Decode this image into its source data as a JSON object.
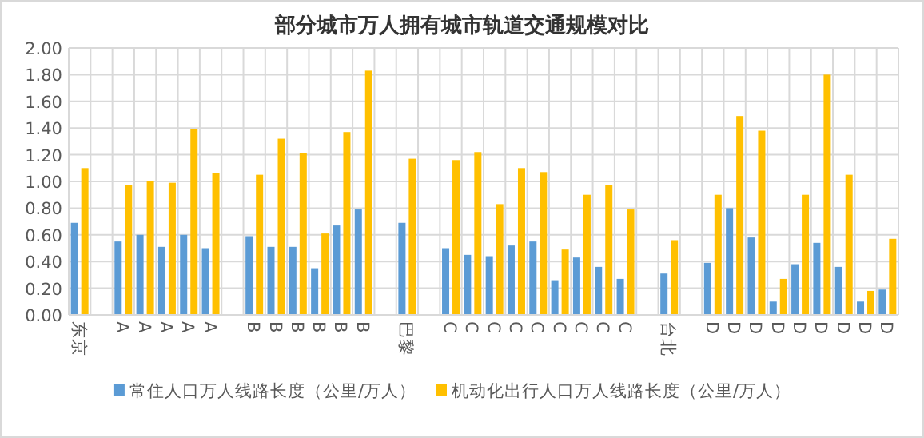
{
  "chart_data": {
    "type": "bar",
    "title": "部分城市万人拥有城市轨道交通规模对比",
    "categories": [
      "东京",
      null,
      "A",
      "A",
      "A",
      "A",
      "A",
      null,
      "B",
      "B",
      "B",
      "B",
      "B",
      "B",
      null,
      "巴黎",
      null,
      "C",
      "C",
      "C",
      "C",
      "C",
      "C",
      "C",
      "C",
      "C",
      null,
      "台北",
      null,
      "D",
      "D",
      "D",
      "D",
      "D",
      "D",
      "D",
      "D",
      "D"
    ],
    "series": [
      {
        "name": "常住人口万人线路长度（公里/万人）",
        "color": "#5b9bd5",
        "values": [
          0.69,
          null,
          0.55,
          0.6,
          0.51,
          0.6,
          0.5,
          null,
          0.59,
          0.51,
          0.51,
          0.35,
          0.67,
          0.79,
          null,
          0.69,
          null,
          0.5,
          0.45,
          0.44,
          0.52,
          0.55,
          0.26,
          0.43,
          0.36,
          0.27,
          null,
          0.31,
          null,
          0.39,
          0.8,
          0.58,
          0.1,
          0.38,
          0.54,
          0.36,
          0.1,
          0.19
        ]
      },
      {
        "name": "机动化出行人口万人线路长度（公里/万人）",
        "color": "#ffc000",
        "values": [
          1.1,
          null,
          0.97,
          1.0,
          0.99,
          1.39,
          1.06,
          null,
          1.05,
          1.32,
          1.21,
          0.61,
          1.37,
          1.83,
          null,
          1.17,
          null,
          1.16,
          1.22,
          0.83,
          1.1,
          1.07,
          0.49,
          0.9,
          0.97,
          0.79,
          null,
          0.56,
          null,
          0.9,
          1.49,
          1.38,
          0.27,
          0.9,
          1.8,
          1.05,
          0.18,
          0.57
        ]
      }
    ],
    "ylim": [
      0,
      2
    ],
    "yticks": [
      {
        "value": 0,
        "label": "0.00"
      },
      {
        "value": 0.2,
        "label": "0.20"
      },
      {
        "value": 0.4,
        "label": "0.40"
      },
      {
        "value": 0.6,
        "label": "0.60"
      },
      {
        "value": 0.8,
        "label": "0.80"
      },
      {
        "value": 1.0,
        "label": "1.00"
      },
      {
        "value": 1.2,
        "label": "1.20"
      },
      {
        "value": 1.4,
        "label": "1.40"
      },
      {
        "value": 1.6,
        "label": "1.60"
      },
      {
        "value": 1.8,
        "label": "1.80"
      },
      {
        "value": 2.0,
        "label": "2.00"
      }
    ],
    "grid": true,
    "legend": "bottom"
  }
}
